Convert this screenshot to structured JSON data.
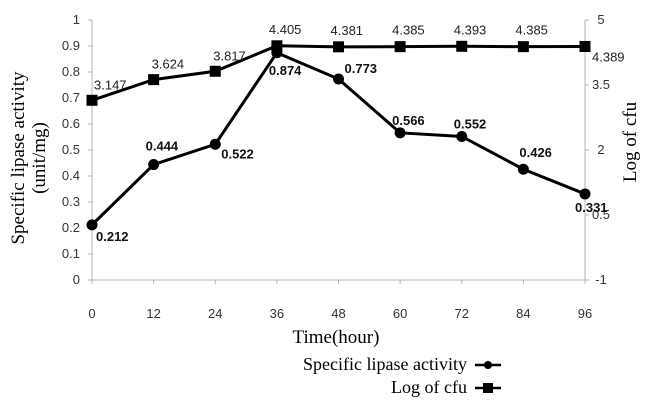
{
  "chart_data": {
    "type": "line",
    "x": [
      0,
      12,
      24,
      36,
      48,
      60,
      72,
      84,
      96
    ],
    "xlabel": "Time(hour)",
    "x_ticks": [
      "0",
      "12",
      "24",
      "36",
      "48",
      "60",
      "72",
      "84",
      "96"
    ],
    "y_left": {
      "label_line1": "Specific lipase activity",
      "label_line2": "(unit/mg)",
      "range": [
        0,
        1
      ],
      "ticks": [
        "0",
        "0.1",
        "0.2",
        "0.3",
        "0.4",
        "0.5",
        "0.6",
        "0.7",
        "0.8",
        "0.9",
        "1"
      ]
    },
    "y_right": {
      "label": "Log of cfu",
      "range": [
        -1,
        5
      ],
      "ticks": [
        "-1",
        "0.5",
        "2",
        "3.5",
        "5"
      ]
    },
    "series": [
      {
        "name": "Specific lipase activity",
        "axis": "left",
        "marker": "circle",
        "values": [
          0.212,
          0.444,
          0.522,
          0.874,
          0.773,
          0.566,
          0.552,
          0.426,
          0.331
        ],
        "labels": [
          "0.212",
          "0.444",
          "0.522",
          "0.874",
          "0.773",
          "0.566",
          "0.552",
          "0.426",
          "0.331"
        ]
      },
      {
        "name": "Log of cfu",
        "axis": "right",
        "marker": "square",
        "values": [
          3.147,
          3.624,
          3.817,
          4.405,
          4.381,
          4.385,
          4.393,
          4.385,
          4.389
        ],
        "labels": [
          "3.147",
          "3.624",
          "3.817",
          "4.405",
          "4.381",
          "4.385",
          "4.393",
          "4.385",
          "4.389"
        ]
      }
    ],
    "grid": false,
    "legend_position": "bottom"
  }
}
